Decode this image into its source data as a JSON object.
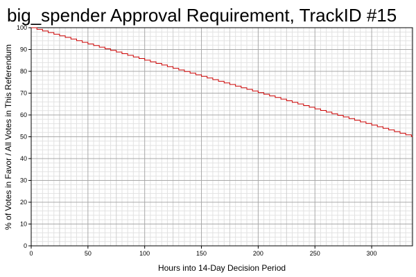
{
  "chart_data": {
    "type": "line",
    "title": "big_spender Approval Requirement, TrackID #15",
    "xlabel": "Hours into 14-Day Decision Period",
    "ylabel": "% of Votes in Favor / All Votes in This Referendum",
    "xlim": [
      0,
      336
    ],
    "ylim": [
      0,
      100
    ],
    "x_ticks": [
      0,
      50,
      100,
      150,
      200,
      250,
      300
    ],
    "y_ticks": [
      0,
      10,
      20,
      30,
      40,
      50,
      60,
      70,
      80,
      90,
      100
    ],
    "grid": true,
    "legend": "none",
    "series": [
      {
        "line_style": "step",
        "color": "#cc0000",
        "x": [
          0,
          336
        ],
        "y": [
          100,
          50
        ],
        "step_hours": 5
      }
    ]
  }
}
